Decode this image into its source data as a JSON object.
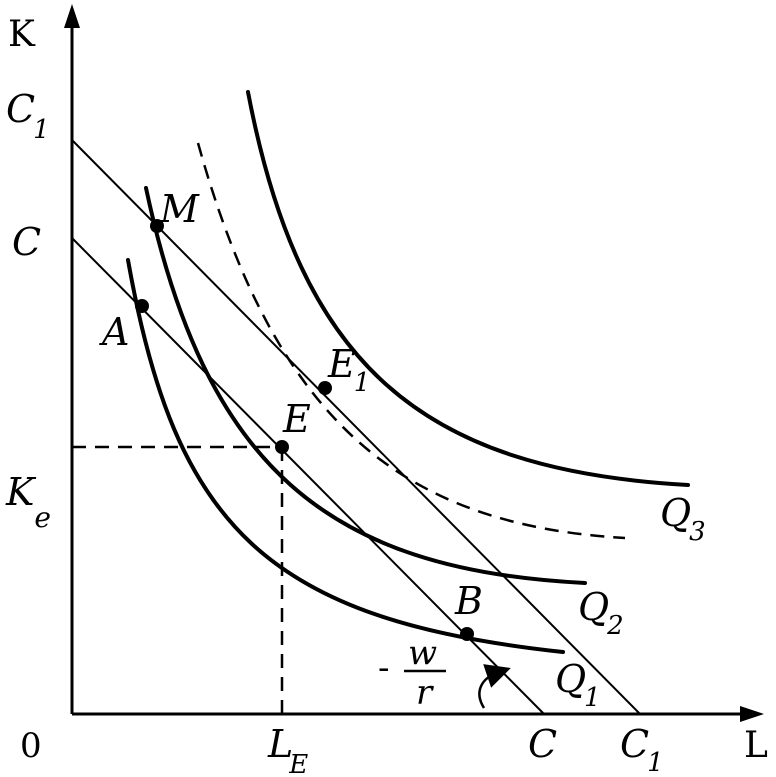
{
  "axes": {
    "y_label": "K",
    "x_label": "L",
    "origin": "0"
  },
  "y_ticks": {
    "c1": "C",
    "c1_sub": "1",
    "c": "C",
    "ke": "K",
    "ke_sub": "e"
  },
  "x_ticks": {
    "le": "L",
    "le_sub": "E",
    "c": "C",
    "c1": "C",
    "c1_sub": "1"
  },
  "points": {
    "m": "M",
    "a": "A",
    "e": "E",
    "e1": "E",
    "e1_sub": "1",
    "b": "B"
  },
  "curves": {
    "q1": "Q",
    "q1_sub": "1",
    "q2": "Q",
    "q2_sub": "2",
    "q3": "Q",
    "q3_sub": "3"
  },
  "slope": {
    "minus": "-",
    "numerator": "w",
    "denominator": "r"
  }
}
